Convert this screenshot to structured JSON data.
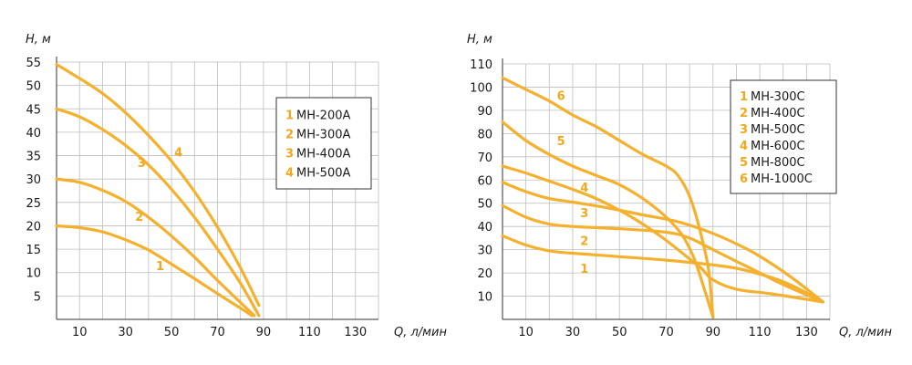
{
  "chart_data": [
    {
      "type": "line",
      "xlabel": "Q, л/мин",
      "ylabel": "H, м",
      "xlim": [
        0,
        140
      ],
      "ylim": [
        0,
        55
      ],
      "x_ticks": [
        10,
        30,
        50,
        70,
        90,
        110,
        130
      ],
      "y_ticks": [
        5,
        10,
        15,
        20,
        25,
        30,
        35,
        40,
        45,
        50,
        55
      ],
      "legend_position": "top-right",
      "curve_color": "#f5b12e",
      "series": [
        {
          "num": "1",
          "name": "MH-200A",
          "label_at": [
            45,
            11.5
          ],
          "points": [
            [
              0,
              20
            ],
            [
              10,
              19.6
            ],
            [
              20,
              18.7
            ],
            [
              30,
              17
            ],
            [
              40,
              14.8
            ],
            [
              50,
              11.8
            ],
            [
              60,
              8.7
            ],
            [
              70,
              5.5
            ],
            [
              80,
              2.4
            ],
            [
              85,
              0.8
            ]
          ]
        },
        {
          "num": "2",
          "name": "MH-300A",
          "label_at": [
            36,
            22
          ],
          "points": [
            [
              0,
              30
            ],
            [
              10,
              29.3
            ],
            [
              20,
              27.6
            ],
            [
              30,
              25.2
            ],
            [
              40,
              21.8
            ],
            [
              50,
              17.8
            ],
            [
              60,
              13.3
            ],
            [
              70,
              8.3
            ],
            [
              80,
              3.6
            ],
            [
              86,
              0.8
            ]
          ]
        },
        {
          "num": "3",
          "name": "MH-400A",
          "label_at": [
            37,
            33.5
          ],
          "points": [
            [
              0,
              45
            ],
            [
              10,
              43.3
            ],
            [
              20,
              40.6
            ],
            [
              30,
              37.2
            ],
            [
              40,
              33
            ],
            [
              50,
              27.8
            ],
            [
              60,
              21.8
            ],
            [
              70,
              15
            ],
            [
              80,
              7.7
            ],
            [
              88,
              0.8
            ]
          ]
        },
        {
          "num": "4",
          "name": "MH-500A",
          "label_at": [
            53,
            35.8
          ],
          "points": [
            [
              0,
              54.5
            ],
            [
              10,
              51.5
            ],
            [
              20,
              48.3
            ],
            [
              30,
              44.2
            ],
            [
              40,
              39.3
            ],
            [
              50,
              33.8
            ],
            [
              60,
              27.3
            ],
            [
              70,
              19.7
            ],
            [
              80,
              11
            ],
            [
              88,
              3
            ]
          ]
        }
      ]
    },
    {
      "type": "line",
      "xlabel": "Q, л/мин",
      "ylabel": "H, м",
      "xlim": [
        0,
        140
      ],
      "ylim": [
        0,
        110
      ],
      "x_ticks": [
        10,
        30,
        50,
        70,
        90,
        110,
        130
      ],
      "y_ticks": [
        10,
        20,
        30,
        40,
        50,
        60,
        70,
        80,
        90,
        100,
        110
      ],
      "legend_position": "top-right",
      "curve_color": "#f5b12e",
      "series": [
        {
          "num": "1",
          "name": "MH-300C",
          "label_at": [
            35,
            22
          ],
          "points": [
            [
              0,
              36
            ],
            [
              10,
              32
            ],
            [
              20,
              29.5
            ],
            [
              30,
              28.5
            ],
            [
              50,
              27
            ],
            [
              70,
              25.5
            ],
            [
              85,
              24
            ],
            [
              100,
              22
            ],
            [
              115,
              18
            ],
            [
              125,
              14
            ],
            [
              137,
              7.5
            ]
          ]
        },
        {
          "num": "2",
          "name": "MH-400C",
          "label_at": [
            35,
            34
          ],
          "points": [
            [
              0,
              49
            ],
            [
              10,
              44
            ],
            [
              20,
              41
            ],
            [
              30,
              40
            ],
            [
              50,
              39
            ],
            [
              70,
              37.5
            ],
            [
              80,
              35
            ],
            [
              90,
              30
            ],
            [
              100,
              25
            ],
            [
              110,
              20
            ],
            [
              120,
              15
            ],
            [
              137,
              7.5
            ]
          ]
        },
        {
          "num": "3",
          "name": "MH-500C",
          "label_at": [
            35,
            46
          ],
          "points": [
            [
              0,
              59
            ],
            [
              10,
              55
            ],
            [
              20,
              52
            ],
            [
              30,
              50.5
            ],
            [
              45,
              48
            ],
            [
              60,
              45
            ],
            [
              75,
              42
            ],
            [
              90,
              37
            ],
            [
              105,
              30
            ],
            [
              115,
              24
            ],
            [
              125,
              17
            ],
            [
              137,
              7.5
            ]
          ]
        },
        {
          "num": "4",
          "name": "MH-600C",
          "label_at": [
            35,
            57
          ],
          "points": [
            [
              0,
              66
            ],
            [
              10,
              63
            ],
            [
              20,
              59.5
            ],
            [
              30,
              56
            ],
            [
              40,
              52
            ],
            [
              50,
              47
            ],
            [
              60,
              41
            ],
            [
              70,
              34
            ],
            [
              80,
              26
            ],
            [
              85,
              22
            ],
            [
              90,
              17
            ],
            [
              100,
              13
            ],
            [
              115,
              11
            ],
            [
              137,
              7.5
            ]
          ]
        },
        {
          "num": "5",
          "name": "MH-800C",
          "label_at": [
            25,
            77
          ],
          "points": [
            [
              0,
              85
            ],
            [
              10,
              77
            ],
            [
              20,
              71
            ],
            [
              30,
              66
            ],
            [
              40,
              62
            ],
            [
              50,
              58
            ],
            [
              60,
              52
            ],
            [
              70,
              44
            ],
            [
              77,
              36
            ],
            [
              82,
              26
            ],
            [
              86,
              14
            ],
            [
              90,
              1
            ]
          ]
        },
        {
          "num": "6",
          "name": "MH-1000C",
          "label_at": [
            25,
            96.5
          ],
          "points": [
            [
              0,
              104
            ],
            [
              10,
              99
            ],
            [
              20,
              94
            ],
            [
              30,
              88
            ],
            [
              40,
              83
            ],
            [
              50,
              77
            ],
            [
              60,
              71
            ],
            [
              70,
              66
            ],
            [
              75,
              62
            ],
            [
              80,
              53
            ],
            [
              84,
              40
            ],
            [
              88,
              22
            ],
            [
              90,
              1
            ]
          ]
        }
      ]
    }
  ]
}
